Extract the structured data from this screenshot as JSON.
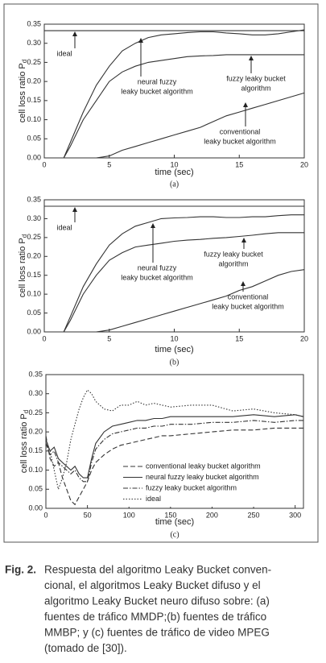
{
  "chart_data": [
    {
      "type": "line",
      "label": "(a)",
      "xlabel": "time (sec)",
      "ylabel": "cell loss ratio P",
      "ylabel_subscript": "d",
      "x": [
        0,
        1.5,
        2,
        3,
        4,
        5,
        6,
        7,
        8,
        9,
        10,
        11,
        12,
        13,
        14,
        15,
        16,
        17,
        18,
        19,
        20
      ],
      "series": [
        {
          "color": "#333333",
          "values": [
            0.333,
            0.333,
            0.333,
            0.333,
            0.333,
            0.333,
            0.333,
            0.333,
            0.333,
            0.333,
            0.333,
            0.333,
            0.333,
            0.333,
            0.333,
            0.333,
            0.333,
            0.333,
            0.333,
            0.333,
            0.333
          ]
        },
        {
          "color": "#333333",
          "values": [
            null,
            0,
            0.04,
            0.12,
            0.19,
            0.24,
            0.28,
            0.3,
            0.315,
            0.322,
            0.325,
            0.328,
            0.33,
            0.33,
            0.327,
            0.325,
            0.322,
            0.322,
            0.325,
            0.33,
            0.335
          ]
        },
        {
          "color": "#333333",
          "values": [
            null,
            0,
            0.03,
            0.1,
            0.15,
            0.2,
            0.225,
            0.24,
            0.25,
            0.255,
            0.26,
            0.265,
            0.267,
            0.268,
            0.27,
            0.27,
            0.27,
            0.27,
            0.27,
            0.27,
            0.27
          ]
        },
        {
          "color": "#333333",
          "values": [
            null,
            0,
            0,
            0,
            0,
            0.005,
            0.02,
            0.03,
            0.04,
            0.05,
            0.06,
            0.07,
            0.08,
            0.095,
            0.11,
            0.12,
            0.13,
            0.14,
            0.15,
            0.16,
            0.17
          ]
        }
      ],
      "annotations": [
        [
          "ideal"
        ],
        [
          "neural fuzzy",
          "leaky bucket algorithm"
        ],
        [
          "fuzzy leaky bucket",
          "algorithm"
        ],
        [
          "conventional",
          "leaky bucket algorithm"
        ]
      ],
      "xlim": [
        0,
        20
      ],
      "ylim": [
        0,
        0.35
      ],
      "xticks": [
        0,
        5,
        10,
        15,
        20
      ],
      "yticks": [
        0.35,
        {
          "value": 0.3,
          "label": "0.30"
        },
        0.25,
        {
          "value": 0.2,
          "label": "0.20"
        },
        0.15,
        {
          "value": 0.1,
          "label": "0.10"
        },
        0.05,
        {
          "value": 0,
          "label": "0.00"
        }
      ]
    },
    {
      "type": "line",
      "label": "(b)",
      "xlabel": "time (sec)",
      "ylabel": "cell loss ratio P",
      "ylabel_subscript": "d",
      "x": [
        0,
        1.5,
        2,
        3,
        4,
        5,
        6,
        7,
        8,
        9,
        10,
        11,
        12,
        13,
        14,
        15,
        16,
        17,
        18,
        19,
        20
      ],
      "series": [
        {
          "color": "#333333",
          "values": [
            0.333,
            0.333,
            0.333,
            0.333,
            0.333,
            0.333,
            0.333,
            0.333,
            0.333,
            0.333,
            0.333,
            0.333,
            0.333,
            0.333,
            0.333,
            0.333,
            0.333,
            0.333,
            0.333,
            0.333,
            0.333
          ]
        },
        {
          "color": "#333333",
          "values": [
            null,
            0,
            0.04,
            0.12,
            0.18,
            0.23,
            0.26,
            0.28,
            0.29,
            0.3,
            0.302,
            0.303,
            0.305,
            0.305,
            0.303,
            0.303,
            0.305,
            0.305,
            0.308,
            0.31,
            0.31
          ]
        },
        {
          "color": "#333333",
          "values": [
            null,
            0,
            0.03,
            0.1,
            0.15,
            0.19,
            0.21,
            0.225,
            0.23,
            0.235,
            0.24,
            0.243,
            0.245,
            0.248,
            0.25,
            0.253,
            0.256,
            0.26,
            0.263,
            0.263,
            0.263
          ]
        },
        {
          "color": "#333333",
          "values": [
            null,
            0,
            0,
            0,
            0,
            0.005,
            0.015,
            0.025,
            0.035,
            0.045,
            0.055,
            0.065,
            0.075,
            0.085,
            0.095,
            0.11,
            0.12,
            0.135,
            0.15,
            0.16,
            0.165
          ]
        }
      ],
      "annotations": [
        [
          "ideal"
        ],
        [
          "neural fuzzy",
          "leaky bucket algorithm"
        ],
        [
          "fuzzy leaky bucket",
          "algorithm"
        ],
        [
          "conventional",
          "leaky bucket algorithm"
        ]
      ],
      "xlim": [
        0,
        20
      ],
      "ylim": [
        0,
        0.35
      ],
      "xticks": [
        0,
        5,
        10,
        15,
        20
      ],
      "yticks": [
        0.35,
        {
          "value": 0.3,
          "label": "0.30"
        },
        0.25,
        {
          "value": 0.2,
          "label": "0.20"
        },
        0.15,
        {
          "value": 0.1,
          "label": "0.10"
        },
        0.05,
        {
          "value": 0,
          "label": "0.00"
        }
      ]
    },
    {
      "type": "line",
      "label": "(c)",
      "xlabel": "time (sec)",
      "ylabel": "cell loss ratio P",
      "ylabel_subscript": "d",
      "x": [
        0,
        5,
        10,
        15,
        20,
        25,
        30,
        35,
        40,
        45,
        50,
        55,
        60,
        70,
        80,
        90,
        100,
        110,
        120,
        130,
        140,
        150,
        175,
        200,
        225,
        250,
        275,
        300,
        310
      ],
      "series": [
        {
          "name": "conventional leaky bucket algorithm",
          "color": "#333333",
          "dash": "dashed",
          "values": [
            0.19,
            0.13,
            0.11,
            0.12,
            0.08,
            0.05,
            0.02,
            0.01,
            0.03,
            0.05,
            0.07,
            0.1,
            0.12,
            0.14,
            0.155,
            0.165,
            0.17,
            0.175,
            0.18,
            0.185,
            0.19,
            0.19,
            0.195,
            0.2,
            0.205,
            0.205,
            0.21,
            0.21,
            0.21
          ]
        },
        {
          "name": "neural fuzzy leaky bucket algorithm",
          "color": "#333333",
          "dash": "solid",
          "values": [
            0.18,
            0.15,
            0.16,
            0.13,
            0.12,
            0.11,
            0.1,
            0.11,
            0.09,
            0.08,
            0.08,
            0.13,
            0.17,
            0.2,
            0.215,
            0.22,
            0.225,
            0.23,
            0.23,
            0.235,
            0.235,
            0.24,
            0.24,
            0.24,
            0.24,
            0.245,
            0.24,
            0.245,
            0.24
          ]
        },
        {
          "name": "fuzzy leaky bucket algorithm",
          "color": "#333333",
          "dash": "dashdot",
          "values": [
            0.17,
            0.14,
            0.15,
            0.12,
            0.11,
            0.1,
            0.09,
            0.1,
            0.08,
            0.07,
            0.07,
            0.12,
            0.155,
            0.18,
            0.195,
            0.2,
            0.205,
            0.21,
            0.21,
            0.215,
            0.215,
            0.22,
            0.22,
            0.225,
            0.225,
            0.23,
            0.225,
            0.23,
            0.23
          ]
        },
        {
          "name": "ideal",
          "color": "#333333",
          "dash": "dotted",
          "values": [
            0.17,
            0.15,
            0.1,
            0.05,
            0.08,
            0.12,
            0.18,
            0.22,
            0.26,
            0.29,
            0.31,
            0.3,
            0.28,
            0.26,
            0.255,
            0.27,
            0.27,
            0.28,
            0.27,
            0.275,
            0.27,
            0.265,
            0.27,
            0.27,
            0.255,
            0.26,
            0.25,
            0.245,
            0.24
          ]
        }
      ],
      "xlim": [
        0,
        310
      ],
      "ylim": [
        0,
        0.35
      ],
      "xticks": [
        0,
        50,
        100,
        150,
        200,
        250,
        300
      ],
      "yticks": [
        0.35,
        {
          "value": 0.3,
          "label": "0.30"
        },
        0.25,
        {
          "value": 0.2,
          "label": "0.20"
        },
        0.15,
        {
          "value": 0.1,
          "label": "0.10"
        },
        0.05,
        {
          "value": 0,
          "label": "0.00"
        }
      ],
      "legend": "lower right"
    }
  ],
  "caption": {
    "label": "Fig. 2.",
    "lines": [
      "Respuesta del algoritmo Leaky Bucket conven-",
      "cional, el algoritmos Leaky Bucket difuso y el",
      "algoritmo Leaky Bucket neuro difuso sobre: (a)",
      "fuentes de tráfico MMDP;(b) fuentes de tráfico",
      "MMBP; y (c) fuentes de tráfico de video MPEG",
      "(tomado de [30])."
    ]
  }
}
